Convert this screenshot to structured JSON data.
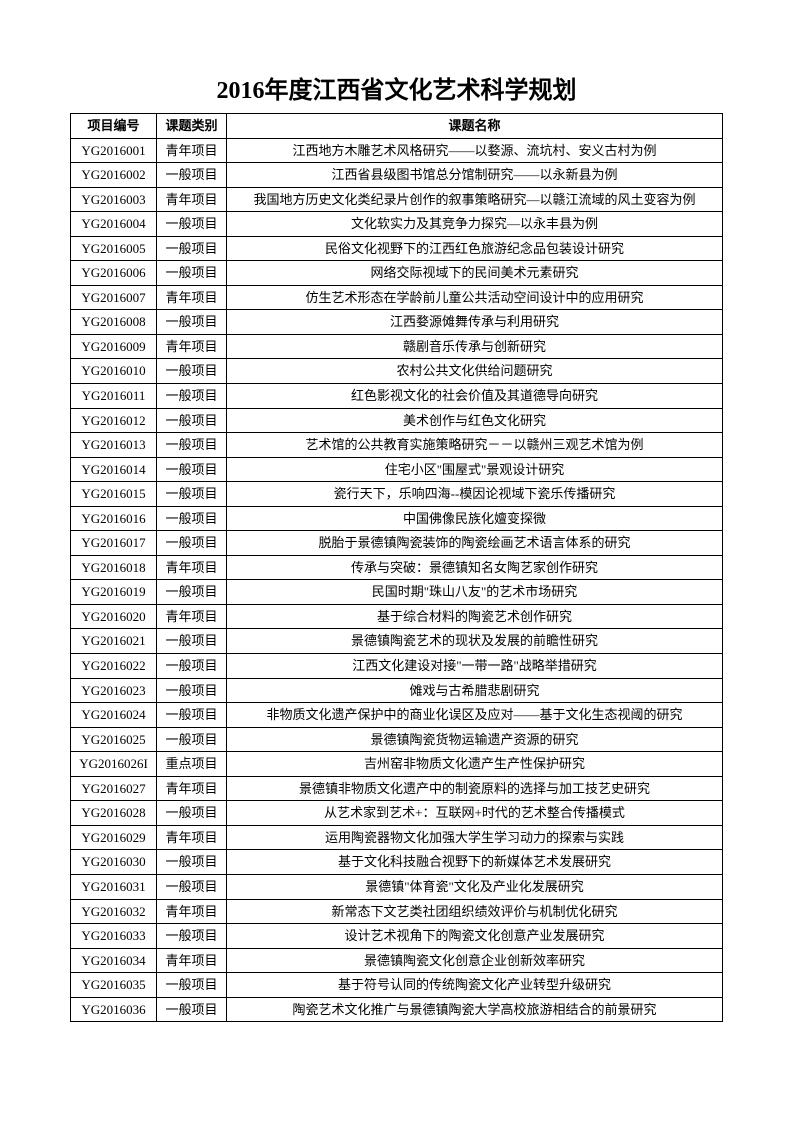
{
  "title": "2016年度江西省文化艺术科学规划",
  "columns": [
    "项目编号",
    "课题类别",
    "课题名称"
  ],
  "rows": [
    [
      "YG2016001",
      "青年项目",
      "江西地方木雕艺术风格研究——以婺源、流坑村、安义古村为例"
    ],
    [
      "YG2016002",
      "一般项目",
      "江西省县级图书馆总分馆制研究——以永新县为例"
    ],
    [
      "YG2016003",
      "青年项目",
      "我国地方历史文化类纪录片创作的叙事策略研究—以赣江流域的风土变容为例"
    ],
    [
      "YG2016004",
      "一般项目",
      "文化软实力及其竞争力探究—以永丰县为例"
    ],
    [
      "YG2016005",
      "一般项目",
      "民俗文化视野下的江西红色旅游纪念品包装设计研究"
    ],
    [
      "YG2016006",
      "一般项目",
      "网络交际视域下的民间美术元素研究"
    ],
    [
      "YG2016007",
      "青年项目",
      "仿生艺术形态在学龄前儿童公共活动空间设计中的应用研究"
    ],
    [
      "YG2016008",
      "一般项目",
      "江西婺源傩舞传承与利用研究"
    ],
    [
      "YG2016009",
      "青年项目",
      "赣剧音乐传承与创新研究"
    ],
    [
      "YG2016010",
      "一般项目",
      "农村公共文化供给问题研究"
    ],
    [
      "YG2016011",
      "一般项目",
      "红色影视文化的社会价值及其道德导向研究"
    ],
    [
      "YG2016012",
      "一般项目",
      "美术创作与红色文化研究"
    ],
    [
      "YG2016013",
      "一般项目",
      "艺术馆的公共教育实施策略研究－－以赣州三观艺术馆为例"
    ],
    [
      "YG2016014",
      "一般项目",
      "住宅小区\"围屋式\"景观设计研究"
    ],
    [
      "YG2016015",
      "一般项目",
      "瓷行天下，乐响四海--模因论视域下瓷乐传播研究"
    ],
    [
      "YG2016016",
      "一般项目",
      "中国佛像民族化嬗变探微"
    ],
    [
      "YG2016017",
      "一般项目",
      "脱胎于景德镇陶瓷装饰的陶瓷绘画艺术语言体系的研究"
    ],
    [
      "YG2016018",
      "青年项目",
      "传承与突破：景德镇知名女陶艺家创作研究"
    ],
    [
      "YG2016019",
      "一般项目",
      "民国时期\"珠山八友\"的艺术市场研究"
    ],
    [
      "YG2016020",
      "青年项目",
      "基于综合材料的陶瓷艺术创作研究"
    ],
    [
      "YG2016021",
      "一般项目",
      "景德镇陶瓷艺术的现状及发展的前瞻性研究"
    ],
    [
      "YG2016022",
      "一般项目",
      "江西文化建设对接\"一带一路\"战略举措研究"
    ],
    [
      "YG2016023",
      "一般项目",
      "傩戏与古希腊悲剧研究"
    ],
    [
      "YG2016024",
      "一般项目",
      "非物质文化遗产保护中的商业化误区及应对——基于文化生态视阈的研究"
    ],
    [
      "YG2016025",
      "一般项目",
      "景德镇陶瓷货物运输遗产资源的研究"
    ],
    [
      "YG2016026I",
      "重点项目",
      "吉州窑非物质文化遗产生产性保护研究"
    ],
    [
      "YG2016027",
      "青年项目",
      "景德镇非物质文化遗产中的制瓷原料的选择与加工技艺史研究"
    ],
    [
      "YG2016028",
      "一般项目",
      "从艺术家到艺术+：互联网+时代的艺术整合传播模式"
    ],
    [
      "YG2016029",
      "青年项目",
      "运用陶瓷器物文化加强大学生学习动力的探索与实践"
    ],
    [
      "YG2016030",
      "一般项目",
      "基于文化科技融合视野下的新媒体艺术发展研究"
    ],
    [
      "YG2016031",
      "一般项目",
      "景德镇\"体育瓷\"文化及产业化发展研究"
    ],
    [
      "YG2016032",
      "青年项目",
      "新常态下文艺类社团组织绩效评价与机制优化研究"
    ],
    [
      "YG2016033",
      "一般项目",
      "设计艺术视角下的陶瓷文化创意产业发展研究"
    ],
    [
      "YG2016034",
      "青年项目",
      "景德镇陶瓷文化创意企业创新效率研究"
    ],
    [
      "YG2016035",
      "一般项目",
      "基于符号认同的传统陶瓷文化产业转型升级研究"
    ],
    [
      "YG2016036",
      "一般项目",
      "陶瓷艺术文化推广与景德镇陶瓷大学高校旅游相结合的前景研究"
    ]
  ]
}
